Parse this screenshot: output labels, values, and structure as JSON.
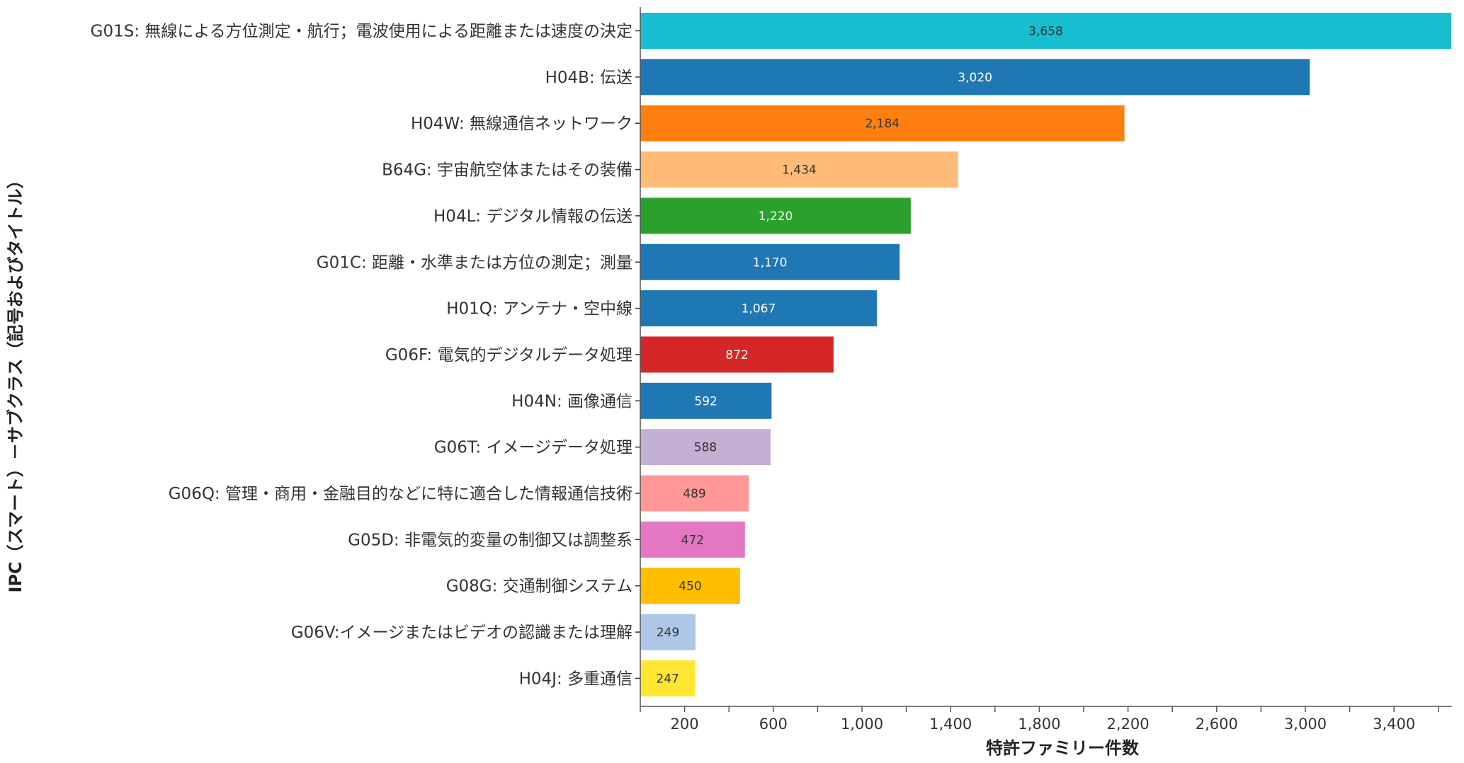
{
  "chart_data": {
    "type": "bar",
    "orientation": "horizontal",
    "title": "",
    "xlabel": "特許ファミリー件数",
    "ylabel": "IPC（スマート）－サブクラス（記号およびタイトル）",
    "xlim": [
      0,
      3658
    ],
    "xticks": [
      200,
      600,
      1000,
      1400,
      1800,
      2200,
      2600,
      3000,
      3400
    ],
    "xtick_labels": [
      "200",
      "600",
      "1,000",
      "1,400",
      "1,800",
      "2,200",
      "2,600",
      "3,000",
      "3,400"
    ],
    "grid": false,
    "categories": [
      "G01S: 無線による方位測定・航行；電波使用による距離または速度の決定",
      "H04B: 伝送",
      "H04W: 無線通信ネットワーク",
      "B64G: 宇宙航空体またはその装備",
      "H04L: デジタル情報の伝送",
      "G01C: 距離・水準または方位の測定；測量",
      "H01Q: アンテナ・空中線",
      "G06F: 電気的デジタルデータ処理",
      "H04N: 画像通信",
      "G06T: イメージデータ処理",
      "G06Q: 管理・商用・金融目的などに特に適合した情報通信技術",
      "G05D: 非電気的変量の制御又は調整系",
      "G08G: 交通制御システム",
      "G06V:イメージまたはビデオの認識または理解",
      "H04J: 多重通信"
    ],
    "values": [
      3658,
      3020,
      2184,
      1434,
      1220,
      1170,
      1067,
      872,
      592,
      588,
      489,
      472,
      450,
      249,
      247
    ],
    "value_labels": [
      "3,658",
      "3,020",
      "2,184",
      "1,434",
      "1,220",
      "1,170",
      "1,067",
      "872",
      "592",
      "588",
      "489",
      "472",
      "450",
      "249",
      "247"
    ],
    "colors": [
      "#17becf",
      "#1f77b4",
      "#ff7f0e",
      "#ffbb78",
      "#2ca02c",
      "#1f77b4",
      "#1f77b4",
      "#d62728",
      "#1f77b4",
      "#c5b0d5",
      "#ff9896",
      "#e377c2",
      "#ffbf00",
      "#aec7e8",
      "#ffe632"
    ],
    "label_colors": [
      "#333333",
      "#ffffff",
      "#333333",
      "#333333",
      "#ffffff",
      "#ffffff",
      "#ffffff",
      "#ffffff",
      "#ffffff",
      "#333333",
      "#333333",
      "#333333",
      "#333333",
      "#333333",
      "#333333"
    ]
  }
}
